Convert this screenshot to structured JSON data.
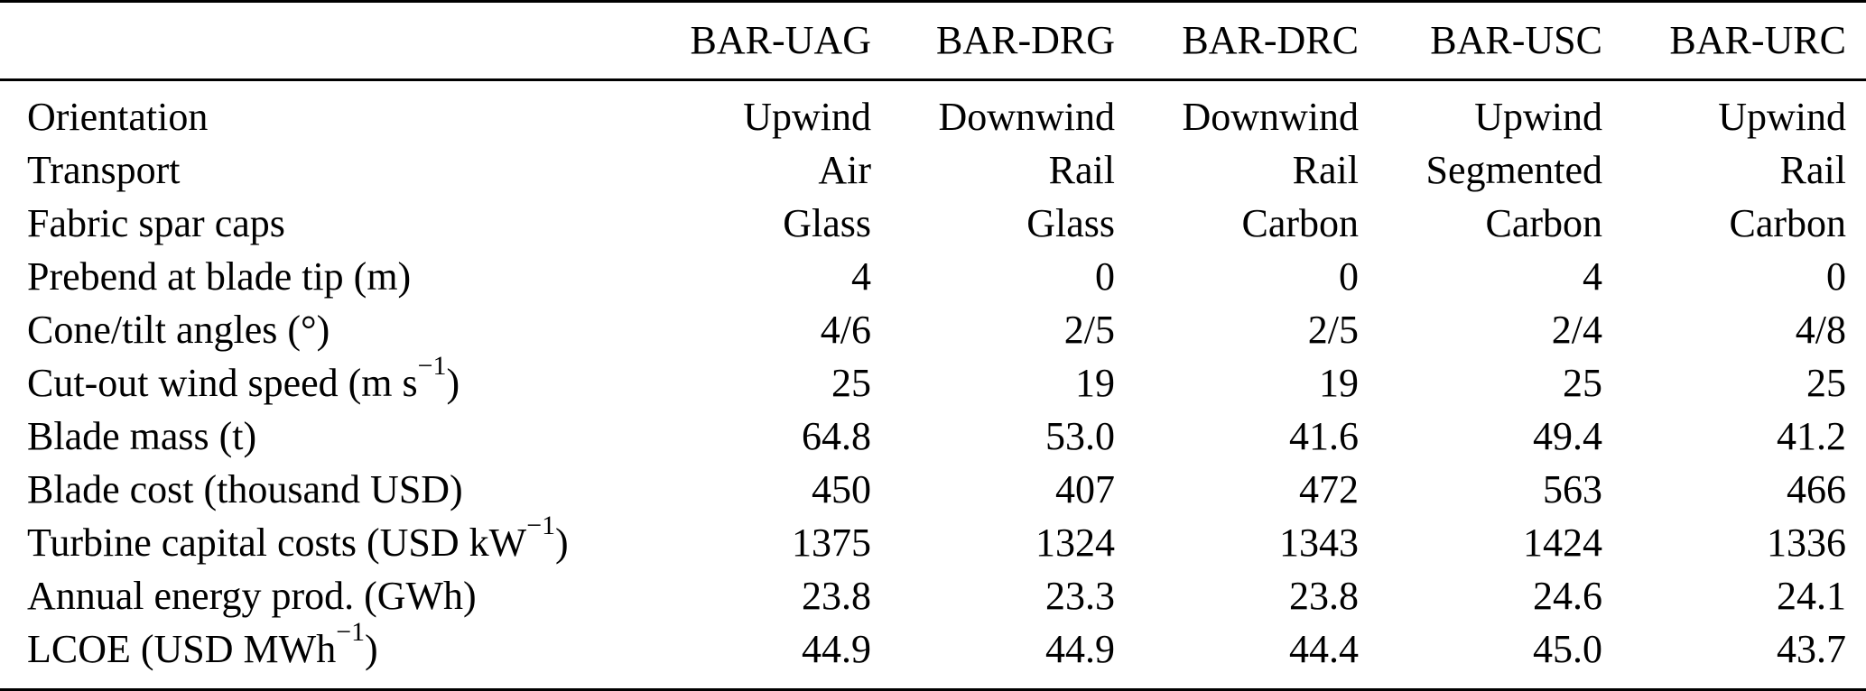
{
  "table": {
    "description": "Wind turbine design comparison table",
    "colors": {
      "text": "#000000",
      "background": "#ffffff",
      "rule": "#000000"
    },
    "header": {
      "label_column": "",
      "columns": [
        "BAR-UAG",
        "BAR-DRG",
        "BAR-DRC",
        "BAR-USC",
        "BAR-URC"
      ]
    },
    "rows": [
      {
        "label_parts": [
          {
            "text": "Orientation"
          }
        ],
        "values": [
          "Upwind",
          "Downwind",
          "Downwind",
          "Upwind",
          "Upwind"
        ]
      },
      {
        "label_parts": [
          {
            "text": "Transport"
          }
        ],
        "values": [
          "Air",
          "Rail",
          "Rail",
          "Segmented",
          "Rail"
        ]
      },
      {
        "label_parts": [
          {
            "text": "Fabric spar caps"
          }
        ],
        "values": [
          "Glass",
          "Glass",
          "Carbon",
          "Carbon",
          "Carbon"
        ]
      },
      {
        "label_parts": [
          {
            "text": "Prebend at blade tip (m)"
          }
        ],
        "values": [
          "4",
          "0",
          "0",
          "4",
          "0"
        ]
      },
      {
        "label_parts": [
          {
            "text": "Cone/tilt angles (°)"
          }
        ],
        "values": [
          "4/6",
          "2/5",
          "2/5",
          "2/4",
          "4/8"
        ]
      },
      {
        "label_parts": [
          {
            "text": "Cut-out wind speed (m s"
          },
          {
            "text": "−1",
            "sup": true
          },
          {
            "text": ")"
          }
        ],
        "values": [
          "25",
          "19",
          "19",
          "25",
          "25"
        ]
      },
      {
        "label_parts": [
          {
            "text": "Blade mass (t)"
          }
        ],
        "values": [
          "64.8",
          "53.0",
          "41.6",
          "49.4",
          "41.2"
        ]
      },
      {
        "label_parts": [
          {
            "text": "Blade cost (thousand USD)"
          }
        ],
        "values": [
          "450",
          "407",
          "472",
          "563",
          "466"
        ]
      },
      {
        "label_parts": [
          {
            "text": "Turbine capital costs (USD kW"
          },
          {
            "text": "−1",
            "sup": true
          },
          {
            "text": ")"
          }
        ],
        "values": [
          "1375",
          "1324",
          "1343",
          "1424",
          "1336"
        ]
      },
      {
        "label_parts": [
          {
            "text": "Annual energy prod. (GWh)"
          }
        ],
        "values": [
          "23.8",
          "23.3",
          "23.8",
          "24.6",
          "24.1"
        ]
      },
      {
        "label_parts": [
          {
            "text": "LCOE (USD MWh"
          },
          {
            "text": "−1",
            "sup": true
          },
          {
            "text": ")"
          }
        ],
        "values": [
          "44.9",
          "44.9",
          "44.4",
          "45.0",
          "43.7"
        ]
      }
    ]
  }
}
